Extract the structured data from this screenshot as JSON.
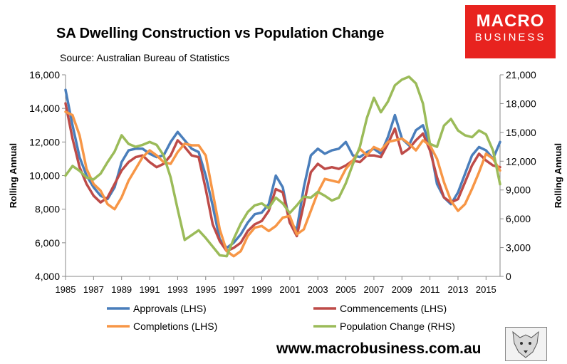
{
  "title": "SA Dwelling Construction vs Population Change",
  "subtitle": "Source: Australian Bureau of Statistics",
  "brand": {
    "line1": "MACRO",
    "line2": "BUSINESS",
    "color": "#e8231f",
    "logo_icon": "wolf-head-icon"
  },
  "url": "www.macrobusiness.com.au",
  "chart_data": {
    "type": "line",
    "x_range": [
      1985,
      2016
    ],
    "x_ticks": [
      "1985",
      "1987",
      "1989",
      "1991",
      "1993",
      "1995",
      "1997",
      "1999",
      "2001",
      "2003",
      "2005",
      "2007",
      "2009",
      "2011",
      "2013",
      "2015"
    ],
    "y_left": {
      "label": "Rolling Annual",
      "range": [
        4000,
        16000
      ],
      "ticks": [
        "4,000",
        "6,000",
        "8,000",
        "10,000",
        "12,000",
        "14,000",
        "16,000"
      ]
    },
    "y_right": {
      "label": "Rolling Annual",
      "range": [
        0,
        21000
      ],
      "ticks": [
        "0",
        "3,000",
        "6,000",
        "9,000",
        "12,000",
        "15,000",
        "18,000",
        "21,000"
      ]
    },
    "grid": false,
    "legend_position": "bottom",
    "series": [
      {
        "name": "Approvals (LHS)",
        "axis": "left",
        "color": "#4a7ebb",
        "x": [
          1985,
          1985.5,
          1986,
          1986.5,
          1987,
          1987.5,
          1988,
          1988.5,
          1989,
          1989.5,
          1990,
          1990.5,
          1991,
          1991.5,
          1992,
          1992.5,
          1993,
          1993.5,
          1994,
          1994.5,
          1995,
          1995.5,
          1996,
          1996.5,
          1997,
          1997.5,
          1998,
          1998.5,
          1999,
          1999.5,
          2000,
          2000.5,
          2001,
          2001.5,
          2002,
          2002.5,
          2003,
          2003.5,
          2004,
          2004.5,
          2005,
          2005.5,
          2006,
          2006.5,
          2007,
          2007.5,
          2008,
          2008.5,
          2009,
          2009.5,
          2010,
          2010.5,
          2011,
          2011.5,
          2012,
          2012.5,
          2013,
          2013.5,
          2014,
          2014.5,
          2015,
          2015.5,
          2016
        ],
        "y": [
          15100,
          13000,
          11100,
          10000,
          9300,
          8800,
          8600,
          9300,
          10800,
          11500,
          11600,
          11600,
          11300,
          11100,
          11200,
          12000,
          12600,
          12100,
          11600,
          11400,
          10000,
          8200,
          6200,
          5700,
          6000,
          6500,
          7200,
          7700,
          7800,
          8300,
          10000,
          9300,
          7200,
          6800,
          9300,
          11200,
          11600,
          11300,
          11500,
          11600,
          12000,
          11200,
          11100,
          11400,
          11600,
          11300,
          12300,
          13600,
          12200,
          11800,
          12700,
          13000,
          11800,
          9500,
          8700,
          8300,
          9000,
          10100,
          11200,
          11700,
          11500,
          11000,
          12000
        ]
      },
      {
        "name": "Commencements (LHS)",
        "axis": "left",
        "color": "#be4b48",
        "x": [
          1985,
          1985.5,
          1986,
          1986.5,
          1987,
          1987.5,
          1988,
          1988.5,
          1989,
          1989.5,
          1990,
          1990.5,
          1991,
          1991.5,
          1992,
          1992.5,
          1993,
          1993.5,
          1994,
          1994.5,
          1995,
          1995.5,
          1996,
          1996.5,
          1997,
          1997.5,
          1998,
          1998.5,
          1999,
          1999.5,
          2000,
          2000.5,
          2001,
          2001.5,
          2002,
          2002.5,
          2003,
          2003.5,
          2004,
          2004.5,
          2005,
          2005.5,
          2006,
          2006.5,
          2007,
          2007.5,
          2008,
          2008.5,
          2009,
          2009.5,
          2010,
          2010.5,
          2011,
          2011.5,
          2012,
          2012.5,
          2013,
          2013.5,
          2014,
          2014.5,
          2015,
          2015.5,
          2016
        ],
        "y": [
          14300,
          12200,
          10500,
          9500,
          8800,
          8400,
          8700,
          9500,
          10300,
          10800,
          11100,
          11200,
          10800,
          10500,
          10700,
          11200,
          12100,
          11700,
          11200,
          11100,
          9200,
          7100,
          6100,
          5500,
          5700,
          6000,
          6700,
          7100,
          7300,
          7900,
          9200,
          9000,
          7200,
          6400,
          8300,
          10200,
          10700,
          10400,
          10500,
          10400,
          10600,
          10900,
          10800,
          11200,
          11200,
          11100,
          11900,
          12800,
          11300,
          11600,
          12100,
          12500,
          11500,
          9900,
          8700,
          8400,
          8600,
          9600,
          10600,
          11300,
          10900,
          10600,
          10500
        ]
      },
      {
        "name": "Completions (LHS)",
        "axis": "left",
        "color": "#f79646",
        "x": [
          1985,
          1985.5,
          1986,
          1986.5,
          1987,
          1987.5,
          1988,
          1988.5,
          1989,
          1989.5,
          1990,
          1990.5,
          1991,
          1991.5,
          1992,
          1992.5,
          1993,
          1993.5,
          1994,
          1994.5,
          1995,
          1995.5,
          1996,
          1996.5,
          1997,
          1997.5,
          1998,
          1998.5,
          1999,
          1999.5,
          2000,
          2000.5,
          2001,
          2001.5,
          2002,
          2002.5,
          2003,
          2003.5,
          2004,
          2004.5,
          2005,
          2005.5,
          2006,
          2006.5,
          2007,
          2007.5,
          2008,
          2008.5,
          2009,
          2009.5,
          2010,
          2010.5,
          2011,
          2011.5,
          2012,
          2012.5,
          2013,
          2013.5,
          2014,
          2014.5,
          2015,
          2015.5,
          2016
        ],
        "y": [
          13800,
          13600,
          12400,
          10400,
          9500,
          9100,
          8300,
          8000,
          8700,
          9700,
          10400,
          11100,
          11500,
          11200,
          10800,
          10700,
          11400,
          11900,
          11800,
          11800,
          11200,
          9000,
          6800,
          5500,
          5200,
          5500,
          6400,
          6900,
          7000,
          6700,
          7000,
          7500,
          7600,
          6500,
          6800,
          7900,
          9000,
          9800,
          9700,
          9600,
          10400,
          10900,
          11600,
          11200,
          11700,
          11500,
          12000,
          12100,
          12200,
          11900,
          11500,
          12100,
          11800,
          11000,
          9600,
          8500,
          7900,
          8300,
          9200,
          10200,
          11300,
          11000,
          10300
        ]
      },
      {
        "name": "Population Change (RHS)",
        "axis": "right",
        "color": "#9bbb59",
        "x": [
          1985,
          1985.5,
          1986,
          1986.5,
          1987,
          1987.5,
          1988,
          1988.5,
          1989,
          1989.5,
          1990,
          1990.5,
          1991,
          1991.5,
          1992,
          1992.5,
          1993,
          1993.5,
          1994,
          1994.5,
          1995,
          1995.5,
          1996,
          1996.5,
          1997,
          1997.5,
          1998,
          1998.5,
          1999,
          1999.5,
          2000,
          2000.5,
          2001,
          2001.5,
          2002,
          2002.5,
          2003,
          2003.5,
          2004,
          2004.5,
          2005,
          2005.5,
          2006,
          2006.5,
          2007,
          2007.5,
          2008,
          2008.5,
          2009,
          2009.5,
          2010,
          2010.5,
          2011,
          2011.5,
          2012,
          2012.5,
          2013,
          2013.5,
          2014,
          2014.5,
          2015,
          2015.5,
          2016
        ],
        "y": [
          10500,
          11500,
          11000,
          10300,
          10100,
          10700,
          11900,
          13000,
          14700,
          13800,
          13500,
          13700,
          14000,
          13700,
          12600,
          10300,
          7000,
          3800,
          4300,
          4800,
          4000,
          3100,
          2200,
          2100,
          3900,
          5500,
          6700,
          7400,
          7600,
          7100,
          8200,
          7600,
          6600,
          7400,
          8300,
          8200,
          8800,
          8400,
          7900,
          8200,
          9700,
          11700,
          13500,
          16500,
          18600,
          17100,
          18200,
          19900,
          20500,
          20800,
          20100,
          18000,
          13800,
          13500,
          15700,
          16400,
          15200,
          14700,
          14500,
          15200,
          14800,
          13100,
          9600
        ]
      }
    ]
  }
}
